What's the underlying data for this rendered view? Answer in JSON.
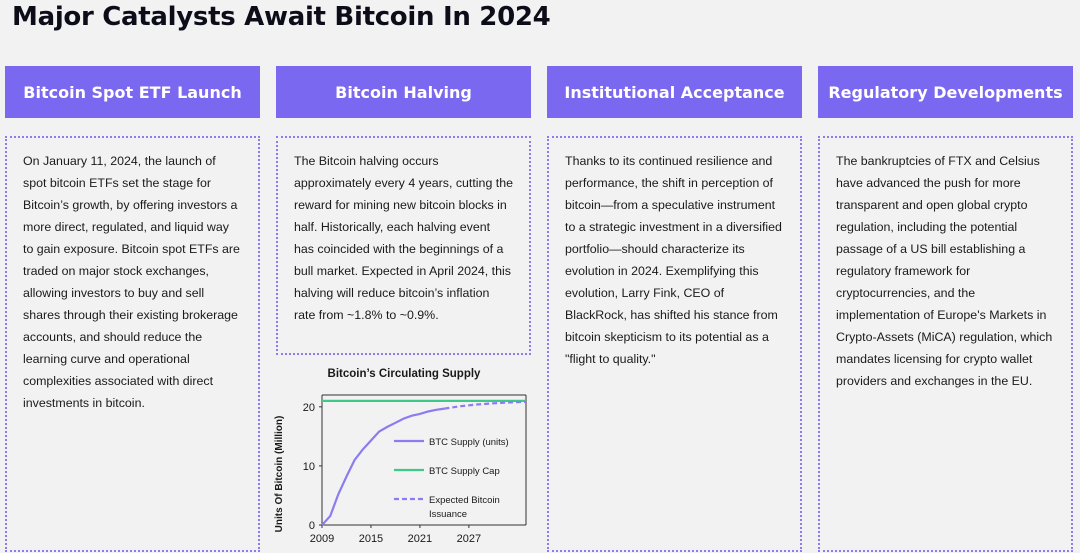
{
  "title": "Major Catalysts Await Bitcoin In 2024",
  "columns": [
    {
      "heading": "Bitcoin Spot ETF Launch",
      "body": "On January 11, 2024, the launch of spot bitcoin ETFs set the stage for Bitcoin’s growth, by offering investors a more direct, regulated, and liquid way to gain exposure. Bitcoin spot ETFs are traded on major stock exchanges, allowing investors to buy and sell shares through their existing brokerage accounts, and should reduce the learning curve and operational complexities associated with direct investments in bitcoin."
    },
    {
      "heading": "Bitcoin Halving",
      "body": "The Bitcoin halving occurs approximately every 4 years, cutting the reward for mining new bitcoin blocks in half. Historically, each halving event has coincided with the beginnings of a bull market. Expected in April 2024, this halving will reduce bitcoin’s inflation rate from ~1.8% to ~0.9%."
    },
    {
      "heading": "Institutional Acceptance",
      "body": "Thanks to its continued resilience and performance, the shift in perception of bitcoin—from a speculative instrument to a strategic investment in a diversified portfolio—should characterize its evolution in 2024. Exemplifying this evolution, Larry Fink, CEO of BlackRock, has shifted his stance from bitcoin skepticism to its potential as a \"flight to quality.\""
    },
    {
      "heading": "Regulatory Developments",
      "body": "The bankruptcies of FTX and Celsius have advanced the push for more transparent and open global crypto regulation, including the potential passage of a US bill establishing a regulatory framework for cryptocurrencies, and the implementation of Europe's Markets in Crypto-Assets (MiCA) regulation, which mandates licensing for crypto wallet providers and exchanges in the EU."
    }
  ],
  "colors": {
    "accent": "#7b68f0",
    "supply_cap": "#3ec98a",
    "text": "#1a1a1a"
  },
  "chart_data": {
    "type": "line",
    "title": "Bitcoin’s Circulating Supply",
    "xlabel": "",
    "ylabel": "Units Of Bitcoin (Million)",
    "xlim": [
      2009,
      2034
    ],
    "ylim": [
      0,
      22
    ],
    "xticks": [
      2009,
      2015,
      2021,
      2027
    ],
    "yticks": [
      0,
      10,
      20
    ],
    "legend": "inside-right",
    "series": [
      {
        "name": "BTC Supply (units)",
        "style": "solid",
        "color": "#8b7cf0",
        "x": [
          2009,
          2010,
          2011,
          2012,
          2013,
          2014,
          2015,
          2016,
          2017,
          2018,
          2019,
          2020,
          2021,
          2022,
          2023,
          2024
        ],
        "y": [
          0,
          1.5,
          5.2,
          8.2,
          11.0,
          12.8,
          14.3,
          15.8,
          16.6,
          17.3,
          18.0,
          18.5,
          18.8,
          19.2,
          19.5,
          19.7
        ]
      },
      {
        "name": "BTC Supply Cap",
        "style": "solid",
        "color": "#3ec98a",
        "x": [
          2009,
          2034
        ],
        "y": [
          21,
          21
        ]
      },
      {
        "name": "Expected Bitcoin Issuance",
        "style": "dashed",
        "color": "#8b7cf0",
        "x": [
          2024,
          2026,
          2028,
          2030,
          2032,
          2034
        ],
        "y": [
          19.7,
          20.1,
          20.4,
          20.6,
          20.75,
          20.85
        ]
      }
    ]
  }
}
